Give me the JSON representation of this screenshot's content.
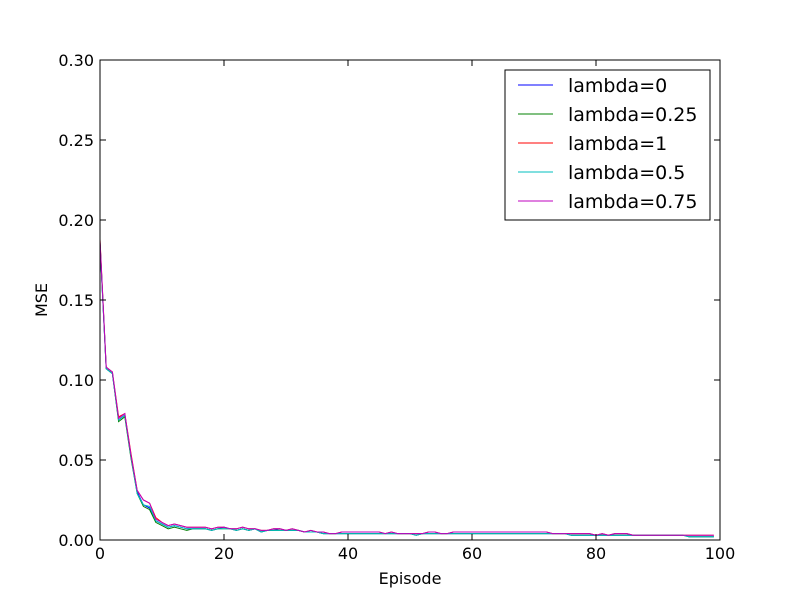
{
  "chart_data": {
    "type": "line",
    "title": "",
    "xlabel": "Episode",
    "ylabel": "MSE",
    "xlim": [
      0,
      100
    ],
    "ylim": [
      0.0,
      0.3
    ],
    "xticks": [
      "0",
      "20",
      "40",
      "60",
      "80",
      "100"
    ],
    "yticks": [
      "0.00",
      "0.05",
      "0.10",
      "0.15",
      "0.20",
      "0.25",
      "0.30"
    ],
    "grid": false,
    "legend_position": "top-right",
    "x": [
      0,
      1,
      2,
      3,
      4,
      5,
      6,
      7,
      8,
      9,
      10,
      11,
      12,
      13,
      14,
      15,
      16,
      17,
      18,
      19,
      20,
      21,
      22,
      23,
      24,
      25,
      26,
      27,
      28,
      29,
      30,
      31,
      32,
      33,
      34,
      35,
      36,
      37,
      38,
      39,
      40,
      41,
      42,
      43,
      44,
      45,
      46,
      47,
      48,
      49,
      50,
      51,
      52,
      53,
      54,
      55,
      56,
      57,
      58,
      59,
      60,
      61,
      62,
      63,
      64,
      65,
      66,
      67,
      68,
      69,
      70,
      71,
      72,
      73,
      74,
      75,
      76,
      77,
      78,
      79,
      80,
      81,
      82,
      83,
      84,
      85,
      86,
      87,
      88,
      89,
      90,
      91,
      92,
      93,
      94,
      95,
      96,
      97,
      98,
      99
    ],
    "series": [
      {
        "name": "lambda=0",
        "color": "#0000ff",
        "values": [
          0.185,
          0.107,
          0.104,
          0.075,
          0.078,
          0.052,
          0.03,
          0.022,
          0.02,
          0.012,
          0.01,
          0.008,
          0.009,
          0.008,
          0.007,
          0.007,
          0.007,
          0.007,
          0.006,
          0.007,
          0.008,
          0.007,
          0.006,
          0.007,
          0.006,
          0.007,
          0.005,
          0.006,
          0.006,
          0.007,
          0.006,
          0.006,
          0.006,
          0.005,
          0.005,
          0.005,
          0.004,
          0.004,
          0.004,
          0.004,
          0.004,
          0.004,
          0.004,
          0.004,
          0.004,
          0.004,
          0.004,
          0.004,
          0.004,
          0.004,
          0.004,
          0.003,
          0.004,
          0.004,
          0.004,
          0.004,
          0.004,
          0.004,
          0.004,
          0.004,
          0.004,
          0.004,
          0.004,
          0.004,
          0.004,
          0.004,
          0.004,
          0.004,
          0.004,
          0.004,
          0.004,
          0.004,
          0.004,
          0.004,
          0.004,
          0.004,
          0.003,
          0.003,
          0.003,
          0.003,
          0.003,
          0.003,
          0.003,
          0.003,
          0.003,
          0.003,
          0.003,
          0.003,
          0.003,
          0.003,
          0.003,
          0.003,
          0.003,
          0.003,
          0.003,
          0.002,
          0.002,
          0.002,
          0.002,
          0.002
        ]
      },
      {
        "name": "lambda=0.25",
        "color": "#008000",
        "values": [
          0.186,
          0.107,
          0.104,
          0.074,
          0.077,
          0.051,
          0.029,
          0.021,
          0.019,
          0.011,
          0.009,
          0.007,
          0.008,
          0.007,
          0.006,
          0.007,
          0.007,
          0.007,
          0.006,
          0.007,
          0.007,
          0.007,
          0.006,
          0.007,
          0.006,
          0.007,
          0.005,
          0.006,
          0.006,
          0.006,
          0.006,
          0.006,
          0.006,
          0.005,
          0.005,
          0.005,
          0.004,
          0.004,
          0.004,
          0.004,
          0.004,
          0.004,
          0.004,
          0.004,
          0.004,
          0.004,
          0.004,
          0.004,
          0.004,
          0.004,
          0.004,
          0.003,
          0.004,
          0.004,
          0.004,
          0.004,
          0.004,
          0.004,
          0.004,
          0.004,
          0.004,
          0.004,
          0.004,
          0.004,
          0.004,
          0.004,
          0.004,
          0.004,
          0.004,
          0.004,
          0.004,
          0.004,
          0.004,
          0.004,
          0.004,
          0.004,
          0.003,
          0.003,
          0.003,
          0.003,
          0.003,
          0.003,
          0.003,
          0.003,
          0.003,
          0.003,
          0.003,
          0.003,
          0.003,
          0.003,
          0.003,
          0.003,
          0.003,
          0.003,
          0.003,
          0.002,
          0.002,
          0.002,
          0.002,
          0.002
        ]
      },
      {
        "name": "lambda=1",
        "color": "#ff0000",
        "values": [
          0.188,
          0.108,
          0.105,
          0.077,
          0.079,
          0.054,
          0.031,
          0.025,
          0.023,
          0.014,
          0.011,
          0.009,
          0.01,
          0.009,
          0.008,
          0.008,
          0.008,
          0.008,
          0.007,
          0.008,
          0.008,
          0.007,
          0.007,
          0.008,
          0.007,
          0.007,
          0.006,
          0.006,
          0.007,
          0.007,
          0.006,
          0.007,
          0.006,
          0.005,
          0.006,
          0.005,
          0.005,
          0.004,
          0.004,
          0.005,
          0.005,
          0.005,
          0.005,
          0.005,
          0.005,
          0.005,
          0.004,
          0.005,
          0.004,
          0.004,
          0.004,
          0.004,
          0.004,
          0.005,
          0.005,
          0.004,
          0.004,
          0.005,
          0.005,
          0.005,
          0.005,
          0.005,
          0.005,
          0.005,
          0.005,
          0.005,
          0.005,
          0.005,
          0.005,
          0.005,
          0.005,
          0.005,
          0.005,
          0.004,
          0.004,
          0.004,
          0.004,
          0.004,
          0.004,
          0.004,
          0.003,
          0.004,
          0.003,
          0.004,
          0.004,
          0.004,
          0.003,
          0.003,
          0.003,
          0.003,
          0.003,
          0.003,
          0.003,
          0.003,
          0.003,
          0.003,
          0.003,
          0.003,
          0.003,
          0.003
        ]
      },
      {
        "name": "lambda=0.5",
        "color": "#00bfbf",
        "values": [
          0.186,
          0.107,
          0.104,
          0.075,
          0.078,
          0.052,
          0.029,
          0.022,
          0.021,
          0.012,
          0.01,
          0.008,
          0.009,
          0.008,
          0.007,
          0.007,
          0.007,
          0.007,
          0.006,
          0.007,
          0.007,
          0.007,
          0.006,
          0.007,
          0.006,
          0.007,
          0.005,
          0.006,
          0.006,
          0.006,
          0.006,
          0.006,
          0.006,
          0.005,
          0.005,
          0.005,
          0.004,
          0.004,
          0.004,
          0.004,
          0.004,
          0.004,
          0.004,
          0.004,
          0.004,
          0.004,
          0.004,
          0.004,
          0.004,
          0.004,
          0.004,
          0.003,
          0.004,
          0.004,
          0.004,
          0.004,
          0.004,
          0.004,
          0.004,
          0.004,
          0.004,
          0.004,
          0.004,
          0.004,
          0.004,
          0.004,
          0.004,
          0.004,
          0.004,
          0.004,
          0.004,
          0.004,
          0.004,
          0.004,
          0.004,
          0.004,
          0.003,
          0.003,
          0.003,
          0.003,
          0.003,
          0.003,
          0.003,
          0.003,
          0.003,
          0.003,
          0.003,
          0.003,
          0.003,
          0.003,
          0.003,
          0.003,
          0.003,
          0.003,
          0.003,
          0.002,
          0.002,
          0.002,
          0.002,
          0.002
        ]
      },
      {
        "name": "lambda=0.75",
        "color": "#bf00bf",
        "values": [
          0.187,
          0.108,
          0.105,
          0.076,
          0.079,
          0.053,
          0.031,
          0.025,
          0.023,
          0.013,
          0.011,
          0.009,
          0.01,
          0.009,
          0.008,
          0.008,
          0.008,
          0.008,
          0.007,
          0.008,
          0.008,
          0.007,
          0.007,
          0.008,
          0.007,
          0.007,
          0.006,
          0.006,
          0.007,
          0.007,
          0.006,
          0.007,
          0.006,
          0.005,
          0.006,
          0.005,
          0.005,
          0.004,
          0.004,
          0.005,
          0.005,
          0.005,
          0.005,
          0.005,
          0.005,
          0.005,
          0.004,
          0.005,
          0.004,
          0.004,
          0.004,
          0.004,
          0.004,
          0.005,
          0.005,
          0.004,
          0.004,
          0.005,
          0.005,
          0.005,
          0.005,
          0.005,
          0.005,
          0.005,
          0.005,
          0.005,
          0.005,
          0.005,
          0.005,
          0.005,
          0.005,
          0.005,
          0.005,
          0.004,
          0.004,
          0.004,
          0.004,
          0.004,
          0.004,
          0.004,
          0.003,
          0.004,
          0.003,
          0.004,
          0.004,
          0.004,
          0.003,
          0.003,
          0.003,
          0.003,
          0.003,
          0.003,
          0.003,
          0.003,
          0.003,
          0.003,
          0.003,
          0.003,
          0.003,
          0.003
        ]
      }
    ]
  }
}
